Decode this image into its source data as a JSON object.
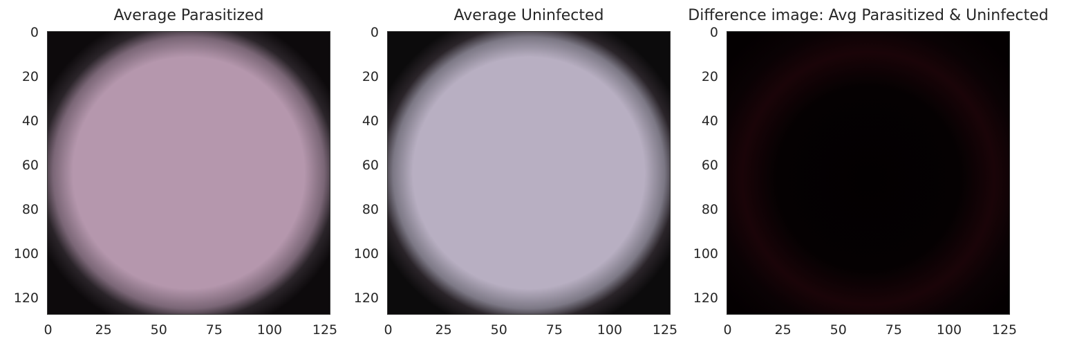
{
  "chart_data": [
    {
      "type": "heatmap",
      "title": "Average Parasitized",
      "xticks": [
        "0",
        "25",
        "50",
        "75",
        "100",
        "125"
      ],
      "yticks": [
        "0",
        "20",
        "40",
        "60",
        "80",
        "100",
        "120"
      ],
      "xlim": [
        -0.5,
        127.5
      ],
      "ylim": [
        127.5,
        -0.5
      ],
      "grid": false,
      "center_color": "#b597ad",
      "edge_color": "#0d0a0c"
    },
    {
      "type": "heatmap",
      "title": "Average Uninfected",
      "xticks": [
        "0",
        "25",
        "50",
        "75",
        "100",
        "125"
      ],
      "yticks": [
        "0",
        "20",
        "40",
        "60",
        "80",
        "100",
        "120"
      ],
      "xlim": [
        -0.5,
        127.5
      ],
      "ylim": [
        127.5,
        -0.5
      ],
      "grid": false,
      "center_color": "#b8afc2",
      "edge_color": "#0c0b0c"
    },
    {
      "type": "heatmap",
      "title": "Difference image: Avg Parasitized & Uninfected",
      "xticks": [
        "0",
        "25",
        "50",
        "75",
        "100",
        "125"
      ],
      "yticks": [
        "0",
        "20",
        "40",
        "60",
        "80",
        "100",
        "120"
      ],
      "xlim": [
        -0.5,
        127.5
      ],
      "ylim": [
        127.5,
        -0.5
      ],
      "grid": false,
      "center_color": "#030001",
      "edge_color": "#1a0408"
    }
  ]
}
